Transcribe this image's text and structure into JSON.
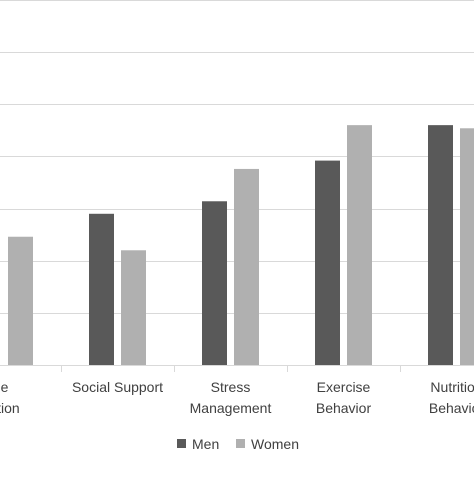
{
  "chart_data": {
    "type": "bar",
    "title": "",
    "xlabel": "",
    "ylabel": "",
    "ylim": [
      0,
      3.5
    ],
    "grid": true,
    "legend_position": "bottom",
    "categories": [
      [
        "e",
        "ation"
      ],
      [
        "Social Support"
      ],
      [
        "Stress",
        "Management"
      ],
      [
        "Exercise",
        "Behavior"
      ],
      [
        "Nutrition",
        "Behavior"
      ]
    ],
    "series": [
      {
        "name": "Men",
        "color": "#595959",
        "values": [
          null,
          1.45,
          1.57,
          1.96,
          2.3
        ]
      },
      {
        "name": "Women",
        "color": "#b0b0b0",
        "values": [
          1.23,
          1.1,
          1.88,
          2.3,
          2.27
        ]
      }
    ]
  }
}
